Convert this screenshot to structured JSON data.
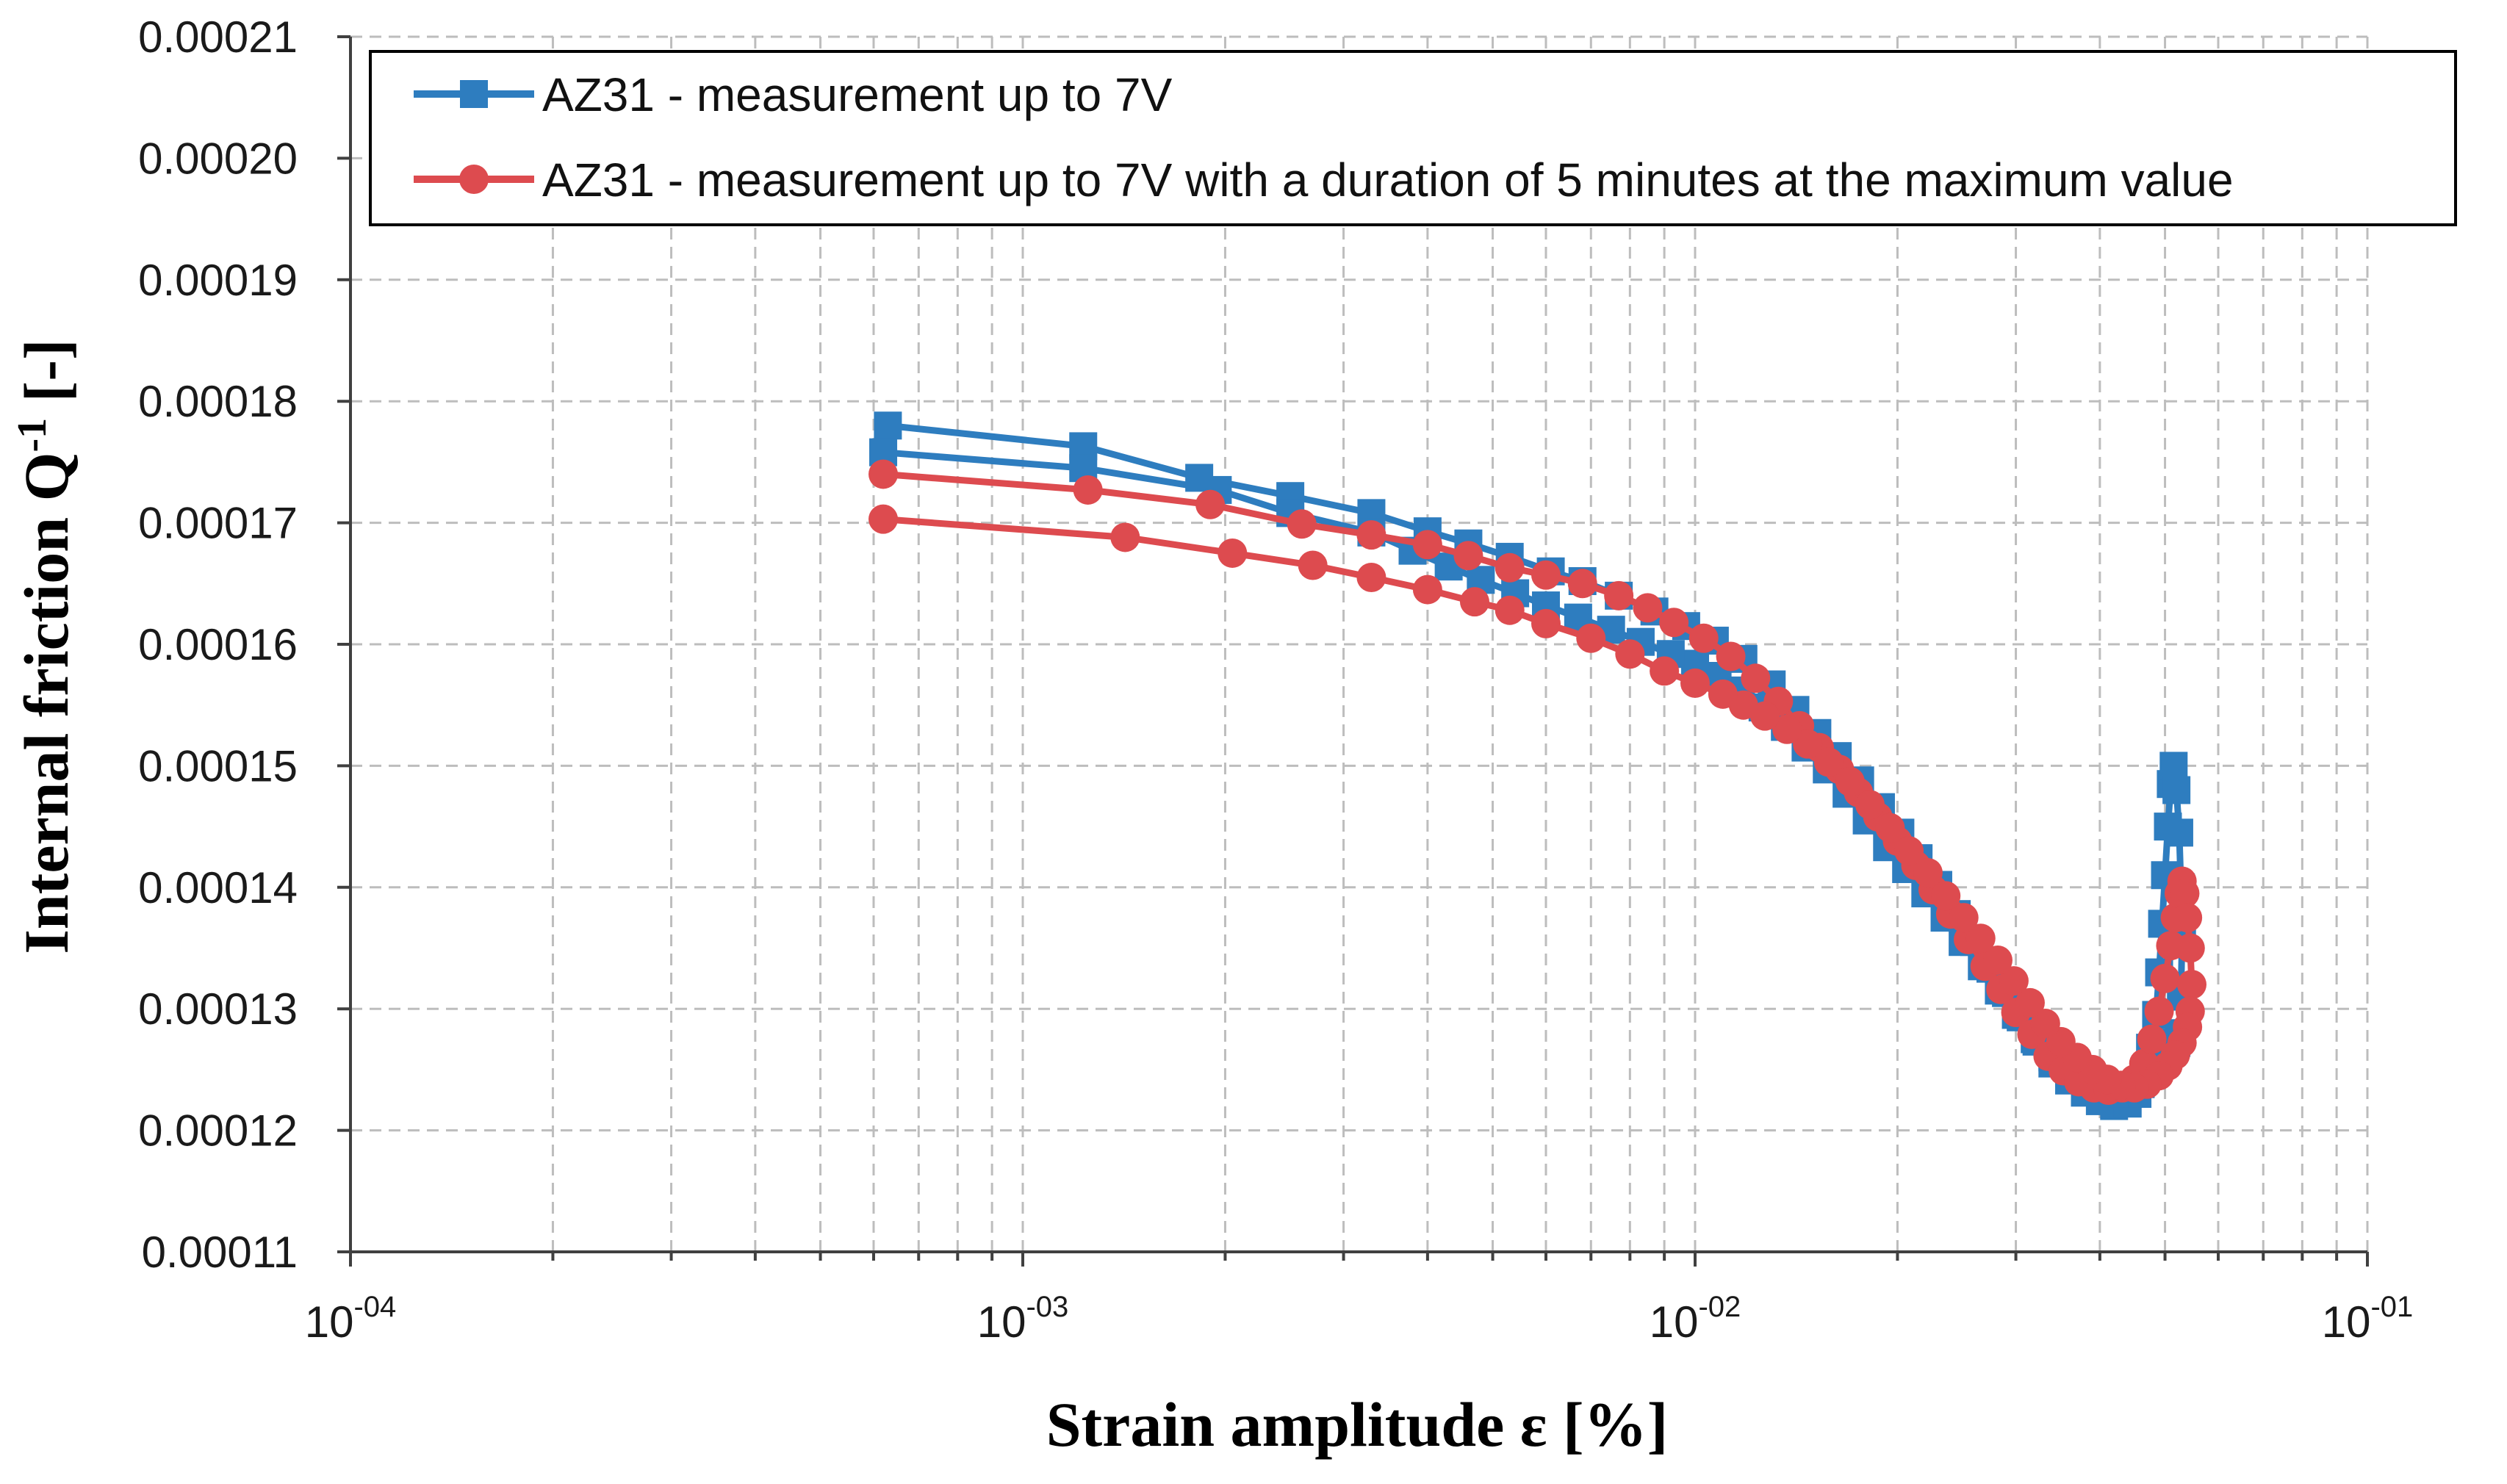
{
  "chart_data": {
    "type": "line",
    "xscale": "log",
    "xlim": [
      0.0001,
      0.1
    ],
    "ylim": [
      0.00011,
      0.00021
    ],
    "grid": true,
    "legend_placement": "top-right",
    "xlabel": {
      "main": "Strain amplitude ε [%]"
    },
    "ylabel": {
      "before": "Internal friction Q",
      "sup": "-1",
      "after": " [-]"
    },
    "x_ticks": [
      {
        "value": 0.0001,
        "base": "10",
        "exp": "-04"
      },
      {
        "value": 0.001,
        "base": "10",
        "exp": "-03"
      },
      {
        "value": 0.01,
        "base": "10",
        "exp": "-02"
      },
      {
        "value": 0.1,
        "base": "10",
        "exp": "-01"
      }
    ],
    "y_ticks": [
      {
        "value": 0.00011,
        "label": "0.00011"
      },
      {
        "value": 0.00012,
        "label": "0.00012"
      },
      {
        "value": 0.00013,
        "label": "0.00013"
      },
      {
        "value": 0.00014,
        "label": "0.00014"
      },
      {
        "value": 0.00015,
        "label": "0.00015"
      },
      {
        "value": 0.00016,
        "label": "0.00016"
      },
      {
        "value": 0.00017,
        "label": "0.00017"
      },
      {
        "value": 0.00018,
        "label": "0.00018"
      },
      {
        "value": 0.00019,
        "label": "0.00019"
      },
      {
        "value": 0.0002,
        "label": "0.00020"
      },
      {
        "value": 0.00021,
        "label": "0.00021"
      }
    ],
    "series": [
      {
        "name": "AZ31 - measurement up to 7V",
        "color": "#2e7dbf",
        "marker": "square",
        "points": [
          [
            0.00063,
            0.000178
          ],
          [
            0.00123,
            0.0001763
          ],
          [
            0.00183,
            0.0001737
          ],
          [
            0.0025,
            0.0001722
          ],
          [
            0.0033,
            0.0001708
          ],
          [
            0.004,
            0.0001693
          ],
          [
            0.0046,
            0.0001683
          ],
          [
            0.0053,
            0.0001672
          ],
          [
            0.0061,
            0.000166
          ],
          [
            0.0068,
            0.0001652
          ],
          [
            0.0077,
            0.000164
          ],
          [
            0.0087,
            0.0001627
          ],
          [
            0.0097,
            0.0001615
          ],
          [
            0.0107,
            0.0001603
          ],
          [
            0.0118,
            0.0001588
          ],
          [
            0.013,
            0.0001567
          ],
          [
            0.0141,
            0.0001546
          ],
          [
            0.0152,
            0.0001527
          ],
          [
            0.0163,
            0.0001508
          ],
          [
            0.0176,
            0.0001488
          ],
          [
            0.0189,
            0.0001466
          ],
          [
            0.0202,
            0.0001445
          ],
          [
            0.0215,
            0.0001424
          ],
          [
            0.023,
            0.0001402
          ],
          [
            0.0245,
            0.0001378
          ],
          [
            0.026,
            0.0001355
          ],
          [
            0.0275,
            0.0001333
          ],
          [
            0.029,
            0.0001313
          ],
          [
            0.0305,
            0.0001293
          ],
          [
            0.0322,
            0.0001273
          ],
          [
            0.034,
            0.0001255
          ],
          [
            0.036,
            0.0001241
          ],
          [
            0.038,
            0.0001231
          ],
          [
            0.04,
            0.0001224
          ],
          [
            0.042,
            0.000122
          ],
          [
            0.044,
            0.0001222
          ],
          [
            0.0455,
            0.000123
          ],
          [
            0.0465,
            0.0001245
          ],
          [
            0.0475,
            0.0001268
          ],
          [
            0.0485,
            0.0001295
          ],
          [
            0.049,
            0.000133
          ],
          [
            0.0495,
            0.000137
          ],
          [
            0.05,
            0.000141
          ],
          [
            0.0505,
            0.000145
          ],
          [
            0.051,
            0.0001485
          ],
          [
            0.0515,
            0.00015
          ],
          [
            0.052,
            0.000148
          ],
          [
            0.0525,
            0.0001445
          ],
          [
            0.0528,
            0.00014
          ],
          [
            0.053,
            0.0001355
          ],
          [
            0.0528,
            0.000131
          ],
          [
            0.0525,
            0.000128
          ],
          [
            0.052,
            0.0001272
          ],
          [
            0.051,
            0.0001265
          ],
          [
            0.05,
            0.000126
          ],
          [
            0.049,
            0.0001255
          ],
          [
            0.0475,
            0.0001245
          ],
          [
            0.046,
            0.0001238
          ],
          [
            0.044,
            0.0001232
          ],
          [
            0.042,
            0.000123
          ],
          [
            0.04,
            0.0001232
          ],
          [
            0.038,
            0.0001238
          ],
          [
            0.036,
            0.0001247
          ],
          [
            0.034,
            0.000126
          ],
          [
            0.032,
            0.0001275
          ],
          [
            0.03,
            0.0001295
          ],
          [
            0.0283,
            0.0001315
          ],
          [
            0.0267,
            0.0001335
          ],
          [
            0.025,
            0.0001355
          ],
          [
            0.0235,
            0.0001375
          ],
          [
            0.022,
            0.0001395
          ],
          [
            0.0206,
            0.0001415
          ],
          [
            0.0193,
            0.0001433
          ],
          [
            0.018,
            0.0001455
          ],
          [
            0.0168,
            0.0001477
          ],
          [
            0.0157,
            0.0001497
          ],
          [
            0.0146,
            0.0001515
          ],
          [
            0.0136,
            0.0001532
          ],
          [
            0.0126,
            0.0001548
          ],
          [
            0.0117,
            0.0001562
          ],
          [
            0.0108,
            0.0001574
          ],
          [
            0.01,
            0.0001584
          ],
          [
            0.0092,
            0.0001592
          ],
          [
            0.0083,
            0.0001602
          ],
          [
            0.0075,
            0.0001612
          ],
          [
            0.0067,
            0.0001622
          ],
          [
            0.006,
            0.0001632
          ],
          [
            0.0054,
            0.0001642
          ],
          [
            0.0048,
            0.0001653
          ],
          [
            0.0043,
            0.0001664
          ],
          [
            0.0038,
            0.0001677
          ],
          [
            0.0033,
            0.0001692
          ],
          [
            0.0025,
            0.0001708
          ],
          [
            0.00195,
            0.0001727
          ],
          [
            0.00123,
            0.0001745
          ],
          [
            0.00062,
            0.0001758
          ]
        ]
      },
      {
        "name": "AZ31 - measurement up to 7V with a duration of 5 minutes at the maximum value",
        "color": "#dd4b4f",
        "marker": "circle",
        "points": [
          [
            0.00062,
            0.000174
          ],
          [
            0.00125,
            0.0001727
          ],
          [
            0.0019,
            0.0001715
          ],
          [
            0.0026,
            0.0001699
          ],
          [
            0.0033,
            0.000169
          ],
          [
            0.004,
            0.0001682
          ],
          [
            0.0046,
            0.0001673
          ],
          [
            0.0053,
            0.0001663
          ],
          [
            0.006,
            0.0001657
          ],
          [
            0.0068,
            0.000165
          ],
          [
            0.0077,
            0.000164
          ],
          [
            0.0085,
            0.000163
          ],
          [
            0.0093,
            0.0001618
          ],
          [
            0.0103,
            0.0001605
          ],
          [
            0.0113,
            0.000159
          ],
          [
            0.0123,
            0.0001572
          ],
          [
            0.0133,
            0.0001553
          ],
          [
            0.0143,
            0.0001533
          ],
          [
            0.0153,
            0.0001515
          ],
          [
            0.0164,
            0.0001497
          ],
          [
            0.0175,
            0.0001478
          ],
          [
            0.0187,
            0.0001458
          ],
          [
            0.02,
            0.0001438
          ],
          [
            0.0213,
            0.0001418
          ],
          [
            0.0226,
            0.0001398
          ],
          [
            0.024,
            0.0001378
          ],
          [
            0.0255,
            0.0001357
          ],
          [
            0.027,
            0.0001335
          ],
          [
            0.0285,
            0.0001316
          ],
          [
            0.03,
            0.0001297
          ],
          [
            0.0317,
            0.0001279
          ],
          [
            0.0335,
            0.0001261
          ],
          [
            0.0353,
            0.0001249
          ],
          [
            0.0372,
            0.000124
          ],
          [
            0.0392,
            0.0001235
          ],
          [
            0.0412,
            0.0001233
          ],
          [
            0.0432,
            0.0001235
          ],
          [
            0.045,
            0.0001242
          ],
          [
            0.0465,
            0.0001255
          ],
          [
            0.0478,
            0.0001275
          ],
          [
            0.049,
            0.0001298
          ],
          [
            0.05,
            0.0001325
          ],
          [
            0.051,
            0.0001352
          ],
          [
            0.0518,
            0.0001375
          ],
          [
            0.0525,
            0.0001395
          ],
          [
            0.053,
            0.0001405
          ],
          [
            0.0535,
            0.0001395
          ],
          [
            0.054,
            0.0001375
          ],
          [
            0.0545,
            0.000135
          ],
          [
            0.0548,
            0.000132
          ],
          [
            0.0545,
            0.0001298
          ],
          [
            0.054,
            0.0001285
          ],
          [
            0.053,
            0.0001272
          ],
          [
            0.0518,
            0.0001262
          ],
          [
            0.0505,
            0.0001253
          ],
          [
            0.049,
            0.0001245
          ],
          [
            0.047,
            0.0001238
          ],
          [
            0.045,
            0.0001235
          ],
          [
            0.043,
            0.0001237
          ],
          [
            0.041,
            0.0001242
          ],
          [
            0.039,
            0.000125
          ],
          [
            0.037,
            0.000126
          ],
          [
            0.035,
            0.0001273
          ],
          [
            0.0332,
            0.0001288
          ],
          [
            0.0315,
            0.0001305
          ],
          [
            0.0298,
            0.0001323
          ],
          [
            0.0282,
            0.000134
          ],
          [
            0.0266,
            0.0001358
          ],
          [
            0.0251,
            0.0001375
          ],
          [
            0.0236,
            0.0001393
          ],
          [
            0.0222,
            0.0001412
          ],
          [
            0.0208,
            0.000143
          ],
          [
            0.0195,
            0.0001449
          ],
          [
            0.0182,
            0.0001468
          ],
          [
            0.017,
            0.0001487
          ],
          [
            0.0158,
            0.0001503
          ],
          [
            0.0147,
            0.0001518
          ],
          [
            0.0137,
            0.000153
          ],
          [
            0.0127,
            0.0001541
          ],
          [
            0.0118,
            0.000155
          ],
          [
            0.011,
            0.0001559
          ],
          [
            0.01,
            0.0001568
          ],
          [
            0.009,
            0.0001578
          ],
          [
            0.008,
            0.0001592
          ],
          [
            0.007,
            0.0001605
          ],
          [
            0.006,
            0.0001617
          ],
          [
            0.0053,
            0.0001628
          ],
          [
            0.0047,
            0.0001635
          ],
          [
            0.004,
            0.0001645
          ],
          [
            0.0033,
            0.0001655
          ],
          [
            0.0027,
            0.0001665
          ],
          [
            0.00205,
            0.0001675
          ],
          [
            0.00142,
            0.0001688
          ],
          [
            0.00062,
            0.0001703
          ]
        ]
      }
    ]
  }
}
